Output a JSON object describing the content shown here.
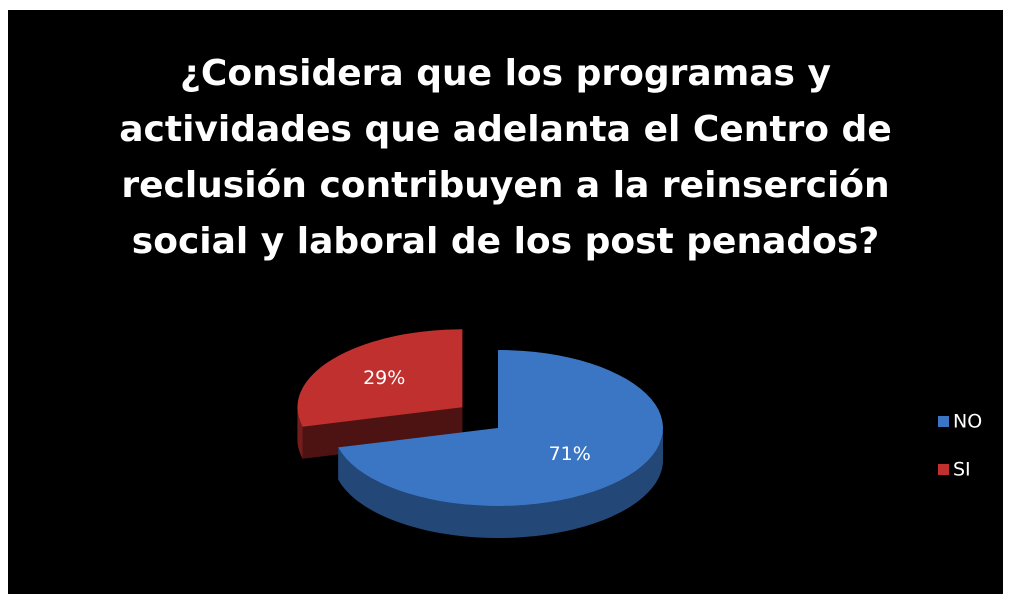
{
  "chart_data": {
    "type": "pie",
    "title": "¿Considera que los programas y\nactividades que adelanta el Centro de\nreclusión contribuyen a la reinserción\nsocial y laboral de los post penados?",
    "categories": [
      "NO",
      "SI"
    ],
    "values": [
      71,
      29
    ],
    "value_labels": [
      "71%",
      "29%"
    ],
    "colors": [
      "#3b76c4",
      "#c0302e"
    ],
    "exploded": [
      false,
      true
    ],
    "legend": "right"
  }
}
